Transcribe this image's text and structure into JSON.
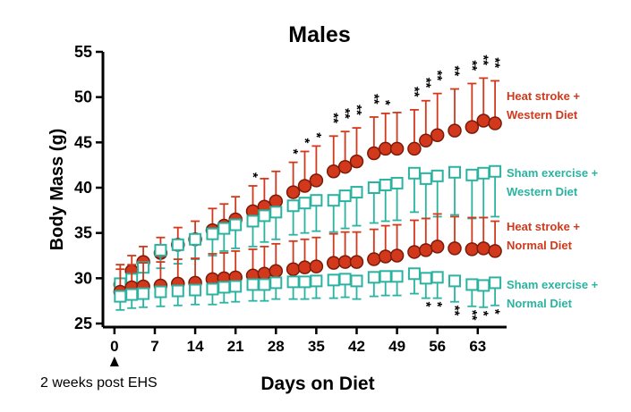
{
  "chart_data": {
    "type": "line",
    "title": "Males",
    "xlabel": "Days on Diet",
    "ylabel": "Body Mass (g)",
    "annotation": "2 weeks post EHS",
    "annotation_x": 0,
    "xlim": [
      -2,
      68
    ],
    "ylim": [
      25,
      55
    ],
    "xticks": [
      0,
      7,
      14,
      21,
      28,
      35,
      42,
      49,
      56,
      63
    ],
    "yticks": [
      25,
      30,
      35,
      40,
      45,
      50,
      55
    ],
    "x": [
      1,
      3,
      5,
      8,
      11,
      14,
      17,
      19,
      21,
      24,
      26,
      28,
      31,
      33,
      35,
      38,
      40,
      42,
      45,
      47,
      49,
      52,
      54,
      56,
      59,
      62,
      64,
      66
    ],
    "series": [
      {
        "name": "Heat stroke + Western Diet",
        "color": "#d2391c",
        "marker": "circle",
        "error_direction": "up",
        "values": [
          29.3,
          30.8,
          31.8,
          32.8,
          33.7,
          34.3,
          35.3,
          35.8,
          36.5,
          37.4,
          37.9,
          38.5,
          39.5,
          40.2,
          40.8,
          41.8,
          42.3,
          42.9,
          43.8,
          44.3,
          44.3,
          44.3,
          45.2,
          45.8,
          46.3,
          46.7,
          47.4,
          47.1
        ],
        "errors": [
          2.2,
          1.7,
          1.7,
          1.7,
          1.9,
          2.0,
          2.4,
          2.4,
          2.5,
          2.8,
          3.1,
          3.3,
          3.3,
          3.8,
          3.8,
          3.9,
          3.9,
          3.7,
          4.0,
          3.9,
          4.0,
          4.3,
          4.4,
          4.6,
          4.6,
          4.8,
          4.7,
          4.7
        ],
        "significance": [
          null,
          null,
          null,
          null,
          null,
          null,
          null,
          null,
          null,
          "*",
          null,
          null,
          "*",
          "*",
          "*",
          "**",
          "**",
          "**",
          "**",
          "*",
          null,
          "**",
          "**",
          "**",
          "**",
          "**",
          "**",
          "**"
        ]
      },
      {
        "name": "Sham exercise + Western Diet",
        "color": "#2ab3a0",
        "marker": "square",
        "error_direction": "down",
        "values": [
          29.4,
          29.9,
          31.2,
          33.1,
          33.7,
          34.3,
          34.9,
          35.5,
          35.9,
          36.3,
          36.9,
          37.3,
          38.0,
          38.3,
          38.6,
          38.6,
          39.1,
          39.5,
          40.0,
          40.3,
          40.5,
          41.6,
          41.0,
          41.3,
          41.7,
          41.4,
          41.6,
          41.8
        ],
        "errors": [
          1.5,
          1.6,
          1.8,
          2.0,
          2.1,
          2.2,
          2.4,
          2.5,
          2.6,
          2.8,
          2.9,
          3.0,
          3.2,
          3.3,
          3.4,
          3.5,
          3.6,
          3.7,
          3.9,
          4.0,
          4.1,
          4.3,
          4.4,
          4.5,
          4.7,
          4.8,
          4.9,
          5.0
        ],
        "significance": null
      },
      {
        "name": "Heat stroke + Normal Diet",
        "color": "#d2391c",
        "marker": "circle",
        "error_direction": "up",
        "values": [
          28.5,
          29.0,
          29.1,
          29.2,
          29.4,
          29.5,
          29.9,
          30.0,
          30.1,
          30.3,
          30.5,
          30.8,
          31.0,
          31.2,
          31.3,
          31.7,
          31.8,
          31.8,
          32.1,
          32.4,
          32.5,
          32.9,
          33.1,
          33.5,
          33.3,
          33.2,
          33.3,
          33.0
        ],
        "errors": [
          2.5,
          2.5,
          2.6,
          2.6,
          2.7,
          2.7,
          2.8,
          2.8,
          2.9,
          2.9,
          3.0,
          3.0,
          3.1,
          3.1,
          3.2,
          3.2,
          3.3,
          3.3,
          3.3,
          3.4,
          3.4,
          3.5,
          3.5,
          3.6,
          3.5,
          3.5,
          3.4,
          3.3
        ],
        "significance": null
      },
      {
        "name": "Sham exercise + Normal Diet",
        "color": "#2ab3a0",
        "marker": "square",
        "error_direction": "down",
        "values": [
          28.0,
          28.2,
          28.3,
          28.5,
          28.6,
          28.7,
          28.8,
          29.0,
          29.1,
          29.3,
          29.3,
          29.5,
          29.6,
          29.6,
          29.7,
          29.8,
          29.9,
          29.7,
          30.1,
          30.2,
          30.2,
          30.5,
          30.0,
          30.1,
          29.7,
          29.3,
          29.2,
          29.5
        ],
        "errors": [
          1.5,
          1.5,
          1.5,
          1.6,
          1.6,
          1.6,
          1.7,
          1.7,
          1.7,
          1.8,
          1.8,
          1.8,
          1.9,
          1.9,
          1.9,
          2.0,
          2.0,
          2.0,
          2.1,
          2.1,
          2.1,
          2.2,
          2.2,
          2.3,
          2.3,
          2.4,
          2.4,
          2.5
        ],
        "significance": [
          null,
          null,
          null,
          null,
          null,
          null,
          null,
          null,
          null,
          null,
          null,
          null,
          null,
          null,
          null,
          null,
          null,
          null,
          null,
          null,
          null,
          null,
          "*",
          "*",
          "**",
          "**",
          "*",
          "*"
        ]
      }
    ]
  }
}
